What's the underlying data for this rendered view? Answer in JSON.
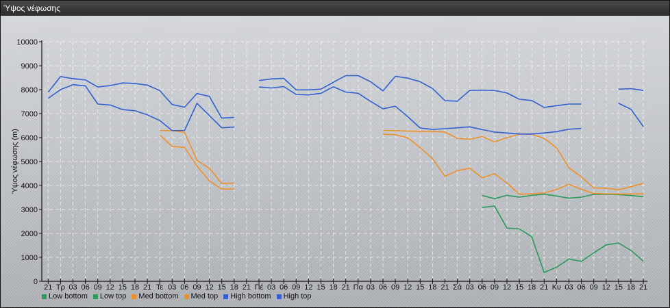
{
  "window": {
    "title": "Ύψος νέφωσης"
  },
  "chart_data": {
    "type": "line",
    "title": "",
    "ylabel": "Ύψος νέφωσης (m)",
    "xlabel": "",
    "ylim": [
      0,
      10000
    ],
    "yticks": [
      0,
      1000,
      2000,
      3000,
      4000,
      5000,
      6000,
      7000,
      8000,
      9000,
      10000
    ],
    "grid": true,
    "legend_position": "bottom-left",
    "categories": [
      "21",
      "Τρ",
      "03",
      "06",
      "09",
      "12",
      "15",
      "18",
      "21",
      "Τε",
      "03",
      "06",
      "09",
      "12",
      "15",
      "18",
      "21",
      "Πέ",
      "03",
      "06",
      "09",
      "12",
      "15",
      "18",
      "21",
      "Πα",
      "03",
      "06",
      "09",
      "12",
      "15",
      "18",
      "21",
      "Σά",
      "03",
      "06",
      "09",
      "12",
      "15",
      "18",
      "21",
      "Κυ",
      "03",
      "06",
      "09",
      "12",
      "15",
      "18",
      "21"
    ],
    "series": [
      {
        "name": "Low bottom",
        "color": "#2a9a5a",
        "values": [
          null,
          null,
          null,
          null,
          null,
          null,
          null,
          null,
          null,
          null,
          null,
          null,
          null,
          null,
          null,
          null,
          null,
          null,
          null,
          null,
          null,
          null,
          null,
          null,
          null,
          null,
          null,
          null,
          null,
          null,
          null,
          null,
          null,
          null,
          null,
          3080,
          3140,
          2220,
          2190,
          1860,
          370,
          590,
          930,
          830,
          1190,
          1520,
          1600,
          1290,
          840
        ]
      },
      {
        "name": "Low top",
        "color": "#2a9a5a",
        "values": [
          null,
          null,
          null,
          null,
          null,
          null,
          null,
          null,
          null,
          null,
          null,
          null,
          null,
          null,
          null,
          null,
          null,
          null,
          null,
          null,
          null,
          null,
          null,
          null,
          null,
          null,
          null,
          null,
          null,
          null,
          null,
          null,
          null,
          null,
          null,
          3580,
          3450,
          3590,
          3510,
          3590,
          3640,
          3560,
          3470,
          3510,
          3630,
          3630,
          3620,
          3580,
          3530
        ]
      },
      {
        "name": "Med bottom",
        "color": "#f0902a",
        "values": [
          null,
          null,
          null,
          null,
          null,
          null,
          null,
          null,
          null,
          6110,
          5630,
          5590,
          4810,
          4200,
          3850,
          3850,
          null,
          null,
          null,
          null,
          null,
          null,
          null,
          null,
          null,
          null,
          null,
          6140,
          6120,
          5990,
          5580,
          5120,
          4380,
          4620,
          4720,
          4320,
          4490,
          4100,
          3640,
          3650,
          3690,
          3830,
          4050,
          3840,
          3670,
          3650,
          3640,
          3650,
          3650
        ]
      },
      {
        "name": "Med top",
        "color": "#f0902a",
        "values": [
          null,
          null,
          null,
          null,
          null,
          null,
          null,
          null,
          null,
          6290,
          6290,
          6220,
          5050,
          4720,
          4080,
          4100,
          null,
          null,
          null,
          null,
          null,
          null,
          null,
          null,
          null,
          null,
          null,
          6300,
          6290,
          6270,
          6260,
          6260,
          6230,
          5970,
          5930,
          6050,
          5820,
          6000,
          6140,
          6140,
          5970,
          5570,
          4740,
          4360,
          3900,
          3890,
          3820,
          3950,
          4090
        ]
      },
      {
        "name": "High bottom",
        "color": "#3060d0",
        "values": [
          7640,
          8000,
          8210,
          8160,
          7400,
          7360,
          7170,
          7120,
          6950,
          6710,
          6290,
          6300,
          7430,
          6920,
          6410,
          6440,
          null,
          8110,
          8070,
          8130,
          7800,
          7780,
          7850,
          8120,
          7900,
          7850,
          7510,
          7200,
          7310,
          6870,
          6400,
          6340,
          6370,
          6410,
          6450,
          6330,
          6230,
          6190,
          6150,
          6150,
          6190,
          6250,
          6350,
          6380,
          null,
          null,
          7430,
          7180,
          6460
        ]
      },
      {
        "name": "High top",
        "color": "#3060d0",
        "values": [
          7890,
          8550,
          8460,
          8410,
          8110,
          8170,
          8280,
          8260,
          8190,
          7960,
          7380,
          7270,
          7840,
          7720,
          6810,
          6840,
          null,
          8380,
          8450,
          8470,
          7990,
          7990,
          8020,
          8310,
          8590,
          8590,
          8330,
          7950,
          8560,
          8480,
          8330,
          8050,
          7540,
          7520,
          7970,
          7980,
          7970,
          7860,
          7600,
          7550,
          7260,
          7330,
          7400,
          7400,
          null,
          null,
          8020,
          8040,
          7970
        ]
      }
    ]
  }
}
